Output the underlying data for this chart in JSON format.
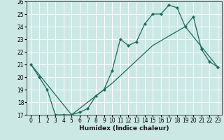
{
  "title": "",
  "xlabel": "Humidex (Indice chaleur)",
  "bg_color": "#cce8e5",
  "grid_color": "#ffffff",
  "line_color": "#1a6b5a",
  "xlim": [
    -0.5,
    23.5
  ],
  "ylim": [
    17,
    26
  ],
  "xticks": [
    0,
    1,
    2,
    3,
    4,
    5,
    6,
    7,
    8,
    9,
    10,
    11,
    12,
    13,
    14,
    15,
    16,
    17,
    18,
    19,
    20,
    21,
    22,
    23
  ],
  "yticks": [
    17,
    18,
    19,
    20,
    21,
    22,
    23,
    24,
    25,
    26
  ],
  "curve1_x": [
    0,
    1,
    2,
    3,
    4,
    5,
    6,
    7,
    8,
    9,
    10,
    11,
    12,
    13,
    14,
    15,
    16,
    17,
    18,
    19,
    20,
    21,
    22,
    23
  ],
  "curve1_y": [
    21,
    20,
    19,
    17,
    17,
    17,
    17.2,
    17.5,
    18.5,
    19,
    20.5,
    23,
    22.5,
    22.8,
    24.2,
    25,
    25,
    25.7,
    25.5,
    24,
    24.8,
    22.2,
    21.2,
    20.8
  ],
  "curve2_x": [
    0,
    5,
    10,
    15,
    19,
    23
  ],
  "curve2_y": [
    21,
    17.0,
    19.5,
    22.5,
    24.0,
    20.8
  ]
}
